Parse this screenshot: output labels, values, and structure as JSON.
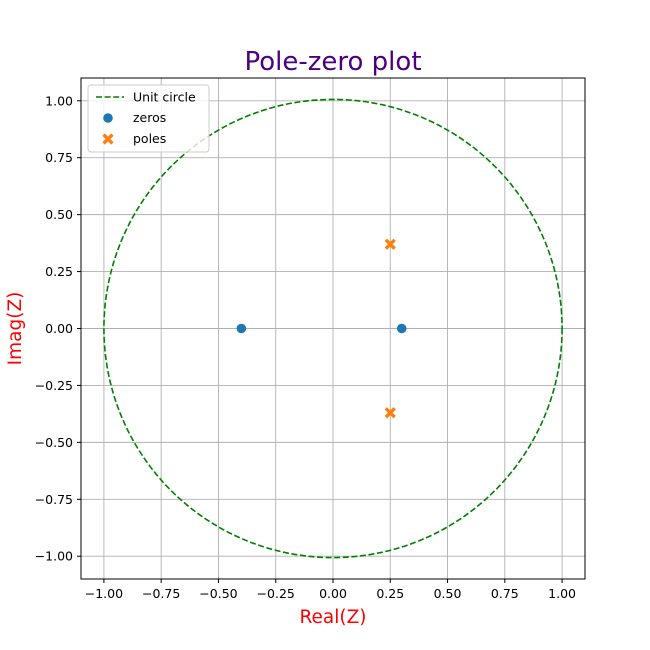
{
  "chart_data": {
    "type": "scatter",
    "title": "Pole-zero plot",
    "xlabel": "Real(Z)",
    "ylabel": "Imag(Z)",
    "xlim": [
      -1.1,
      1.1
    ],
    "ylim": [
      -1.1,
      1.1
    ],
    "xticks": [
      -1.0,
      -0.75,
      -0.5,
      -0.25,
      0.0,
      0.25,
      0.5,
      0.75,
      1.0
    ],
    "yticks": [
      -1.0,
      -0.75,
      -0.5,
      -0.25,
      0.0,
      0.25,
      0.5,
      0.75,
      1.0
    ],
    "xtick_labels": [
      "−1.00",
      "−0.75",
      "−0.50",
      "−0.25",
      "0.00",
      "0.25",
      "0.50",
      "0.75",
      "1.00"
    ],
    "ytick_labels": [
      "−1.00",
      "−0.75",
      "−0.50",
      "−0.25",
      "0.00",
      "0.25",
      "0.50",
      "0.75",
      "1.00"
    ],
    "grid": true,
    "legend_position": "top-left",
    "unit_circle": {
      "name": "Unit circle",
      "radius": 1.0,
      "color": "#008000",
      "style": "dashed"
    },
    "series": [
      {
        "name": "zeros",
        "marker": "circle",
        "color": "#1f77b4",
        "points": [
          {
            "x": -0.4,
            "y": 0.0
          },
          {
            "x": 0.3,
            "y": 0.0
          }
        ]
      },
      {
        "name": "poles",
        "marker": "x",
        "color": "#ff7f0e",
        "points": [
          {
            "x": 0.25,
            "y": 0.37
          },
          {
            "x": 0.25,
            "y": -0.37
          }
        ]
      }
    ],
    "colors": {
      "title": "#4b0082",
      "axis_label": "#ff0000",
      "grid": "#b0b0b0"
    }
  }
}
